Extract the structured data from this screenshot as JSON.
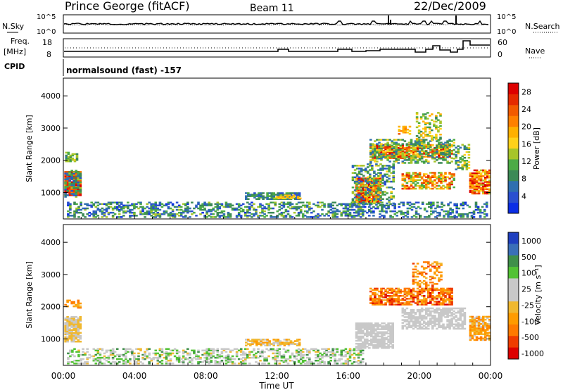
{
  "header": {
    "station": "Prince George (fitACF)",
    "beam": "Beam 11",
    "date": "22/Dec/2009"
  },
  "top_panel": {
    "left_label": "N.Sky",
    "right_label": "N.Search",
    "left_ticks": [
      "10^5",
      "10^0"
    ],
    "right_ticks": [
      "10^5",
      "10^0"
    ]
  },
  "freq_panel": {
    "left_label_1": "Freq.",
    "left_label_2": "[MHz]",
    "right_label": "Nave",
    "left_ticks": [
      "18",
      "8"
    ],
    "right_ticks": [
      "60",
      "0"
    ]
  },
  "cpid": {
    "label": "CPID",
    "text": "normalsound (fast) -157"
  },
  "colors": {
    "power": [
      "#0b2ee6",
      "#2a4fd0",
      "#2f6fb0",
      "#3c8a56",
      "#4cab45",
      "#a7c52a",
      "#ffd11a",
      "#ffb000",
      "#ff8000",
      "#f25a00",
      "#e52a00",
      "#dd0000"
    ],
    "velocity": [
      "#dd0000",
      "#ef3c00",
      "#ff7a00",
      "#ff9b00",
      "#f0b830",
      "#c8c8c8",
      "#c8c8c8",
      "#52c234",
      "#3f8f4a",
      "#3a6fb8",
      "#1f3fbf"
    ]
  },
  "chart_data": [
    {
      "type": "heatmap",
      "panel": "power",
      "ylabel": "Slant Range [km]",
      "xlabel": "",
      "ylim": [
        180,
        4550
      ],
      "yticks": [
        "1000",
        "2000",
        "3000",
        "4000"
      ],
      "xlim": [
        0,
        24
      ],
      "colorbar": {
        "label": "Power [dB]",
        "ticks": [
          "4",
          "8",
          "12",
          "16",
          "20",
          "24",
          "28"
        ],
        "range": [
          0,
          30
        ]
      },
      "regions": [
        {
          "t0": 0.05,
          "t1": 0.9,
          "r0": 900,
          "r1": 1650,
          "vmin": 20,
          "vmax": 30,
          "density": 0.95
        },
        {
          "t0": 0.05,
          "t1": 0.9,
          "r0": 850,
          "r1": 1700,
          "vmin": 4,
          "vmax": 14,
          "density": 0.5
        },
        {
          "t0": 0.1,
          "t1": 0.8,
          "r0": 1950,
          "r1": 2250,
          "vmin": 6,
          "vmax": 16,
          "density": 0.6
        },
        {
          "t0": 10.2,
          "t1": 13.2,
          "r0": 780,
          "r1": 1000,
          "vmin": 3,
          "vmax": 12,
          "density": 0.75
        },
        {
          "t0": 11.8,
          "t1": 13.3,
          "r0": 800,
          "r1": 920,
          "vmin": 14,
          "vmax": 20,
          "density": 0.5
        },
        {
          "t0": 0.2,
          "t1": 16.8,
          "r0": 220,
          "r1": 700,
          "vmin": 2,
          "vmax": 14,
          "density": 0.45
        },
        {
          "t0": 15.8,
          "t1": 23.8,
          "r0": 220,
          "r1": 700,
          "vmin": 2,
          "vmax": 12,
          "density": 0.35
        },
        {
          "t0": 16.4,
          "t1": 17.8,
          "r0": 700,
          "r1": 1450,
          "vmin": 16,
          "vmax": 30,
          "density": 0.85
        },
        {
          "t0": 16.2,
          "t1": 18.5,
          "r0": 600,
          "r1": 1900,
          "vmin": 4,
          "vmax": 16,
          "density": 0.45
        },
        {
          "t0": 17.2,
          "t1": 21.8,
          "r0": 2050,
          "r1": 2500,
          "vmin": 14,
          "vmax": 30,
          "density": 0.7
        },
        {
          "t0": 17.2,
          "t1": 22.0,
          "r0": 1900,
          "r1": 2650,
          "vmin": 6,
          "vmax": 16,
          "density": 0.4
        },
        {
          "t0": 18.8,
          "t1": 19.5,
          "r0": 2800,
          "r1": 3050,
          "vmin": 16,
          "vmax": 24,
          "density": 0.6
        },
        {
          "t0": 19.0,
          "t1": 22.0,
          "r0": 1100,
          "r1": 1600,
          "vmin": 10,
          "vmax": 28,
          "density": 0.6
        },
        {
          "t0": 19.8,
          "t1": 21.2,
          "r0": 2600,
          "r1": 3500,
          "vmin": 8,
          "vmax": 20,
          "density": 0.35
        },
        {
          "t0": 22.0,
          "t1": 22.8,
          "r0": 1700,
          "r1": 2500,
          "vmin": 6,
          "vmax": 18,
          "density": 0.5
        },
        {
          "t0": 22.8,
          "t1": 23.9,
          "r0": 950,
          "r1": 1700,
          "vmin": 14,
          "vmax": 30,
          "density": 0.8
        }
      ]
    },
    {
      "type": "heatmap",
      "panel": "velocity",
      "ylabel": "Slant Range [km]",
      "xlabel": "Time UT",
      "ylim": [
        180,
        4550
      ],
      "yticks": [
        "1000",
        "2000",
        "3000",
        "4000"
      ],
      "xlim": [
        0,
        24
      ],
      "xticks": [
        "00:00",
        "04:00",
        "08:00",
        "12:00",
        "16:00",
        "20:00",
        "00:00"
      ],
      "colorbar": {
        "label": "Velocity [m s⁻¹]",
        "ticks": [
          "1000",
          "500",
          "100",
          "25",
          "-25",
          "-100",
          "-500",
          "-1000"
        ]
      },
      "regions": [
        {
          "t0": 0.05,
          "t1": 0.9,
          "r0": 900,
          "r1": 1700,
          "vmin": 4,
          "vmax": 5,
          "density": 0.85
        },
        {
          "t0": 0.05,
          "t1": 0.9,
          "r0": 1950,
          "r1": 2200,
          "vmin": 2,
          "vmax": 4,
          "density": 0.5
        },
        {
          "t0": 10.2,
          "t1": 13.2,
          "r0": 780,
          "r1": 1000,
          "vmin": 3,
          "vmax": 5,
          "density": 0.7
        },
        {
          "t0": 0.2,
          "t1": 16.8,
          "r0": 220,
          "r1": 700,
          "vmin": 4,
          "vmax": 8,
          "density": 0.45
        },
        {
          "t0": 16.4,
          "t1": 18.5,
          "r0": 700,
          "r1": 1500,
          "vmin": 5,
          "vmax": 6,
          "density": 0.8
        },
        {
          "t0": 17.2,
          "t1": 21.8,
          "r0": 2050,
          "r1": 2550,
          "vmin": 0,
          "vmax": 4,
          "density": 0.7
        },
        {
          "t0": 19.0,
          "t1": 22.5,
          "r0": 1300,
          "r1": 1950,
          "vmin": 5,
          "vmax": 6,
          "density": 0.7
        },
        {
          "t0": 19.6,
          "t1": 21.2,
          "r0": 2600,
          "r1": 3400,
          "vmin": 1,
          "vmax": 4,
          "density": 0.35
        },
        {
          "t0": 22.8,
          "t1": 23.9,
          "r0": 950,
          "r1": 1700,
          "vmin": 2,
          "vmax": 5,
          "density": 0.8
        }
      ]
    }
  ]
}
